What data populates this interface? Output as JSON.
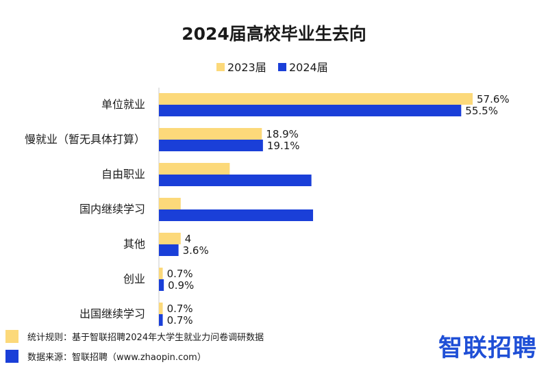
{
  "chart_data": {
    "type": "bar",
    "orientation": "horizontal",
    "title": "2024届高校毕业生去向",
    "legend_position": "top",
    "categories": [
      "单位就业",
      "慢就业（暂无具体打算）",
      "自由职业",
      "国内继续学习",
      "其他",
      "创业",
      "出国继续学习"
    ],
    "series": [
      {
        "name": "2023届",
        "color": "#fcd97a",
        "values": [
          57.6,
          18.9,
          13.0,
          4.0,
          4.0,
          0.7,
          0.7
        ],
        "labels": [
          "57.6%",
          "18.9%",
          "",
          "",
          "4",
          "0.7%",
          "0.7%"
        ]
      },
      {
        "name": "2024届",
        "color": "#1a3fd8",
        "values": [
          55.5,
          19.1,
          28.0,
          28.3,
          3.6,
          0.9,
          0.7
        ],
        "labels": [
          "55.5%",
          "19.1%",
          "",
          "",
          "3.6%",
          "0.9%",
          "0.7%"
        ]
      }
    ],
    "xlim": [
      0,
      57.6
    ],
    "grid": false
  },
  "footer": {
    "rule": "统计规则：基于智联招聘2024年大学生就业力问卷调研数据",
    "source": "数据来源：智联招聘（www.zhaopin.com）",
    "rule_color": "#fcd97a",
    "source_color": "#1a3fd8"
  },
  "logo": "智联招聘"
}
